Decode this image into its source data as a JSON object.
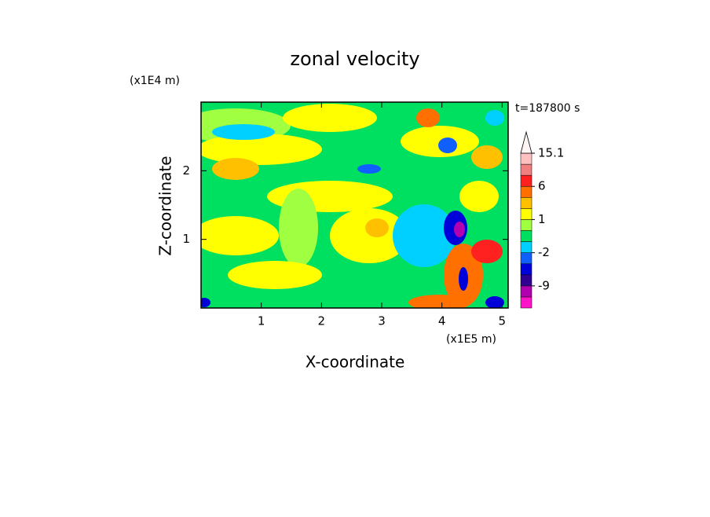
{
  "chart_data": {
    "type": "contour",
    "title": "zonal velocity",
    "x_label": "X-coordinate",
    "y_label": "Z-coordinate",
    "x_unit": "(x1E5 m)",
    "y_unit": "(x1E4 m)",
    "time_label": "t=187800 s",
    "xlim": [
      0,
      5.1
    ],
    "xticks": [
      1,
      2,
      3,
      4,
      5
    ],
    "ylim": [
      0,
      3.0
    ],
    "yticks": [
      1,
      2
    ],
    "colorbar": {
      "levels": [
        -15.1,
        -12,
        -9,
        -6,
        -4,
        -2,
        -1,
        0,
        1,
        2,
        4,
        6,
        9,
        12,
        15.1
      ],
      "colors": [
        "#ff14c8",
        "#b000b0",
        "#300090",
        "#0000d8",
        "#1060ff",
        "#00d0ff",
        "#00e060",
        "#a0ff40",
        "#ffff00",
        "#ffc000",
        "#ff7000",
        "#ff2020",
        "#f08080",
        "#ffc0c0"
      ],
      "over_color": "#fff4f4",
      "ticks": [
        15.1,
        6,
        1,
        -2,
        -9
      ]
    }
  }
}
